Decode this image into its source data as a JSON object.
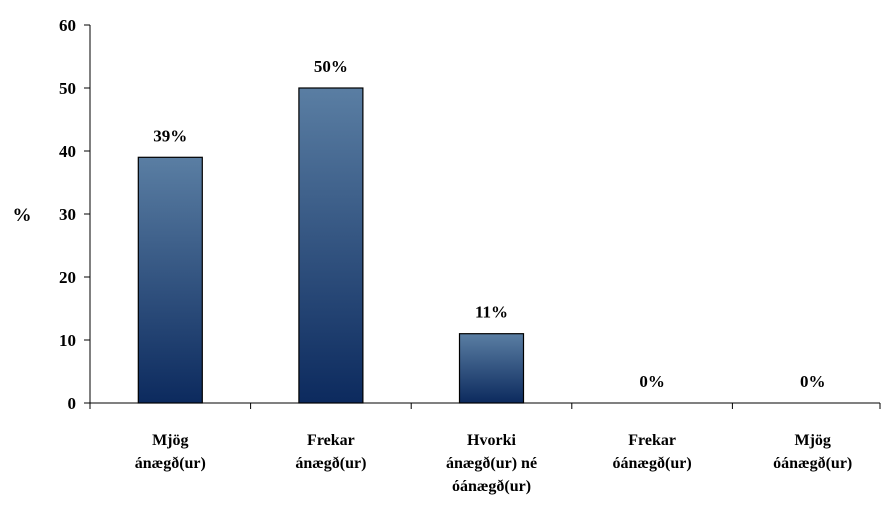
{
  "chart_data": {
    "type": "bar",
    "ylabel": "%",
    "ylim": [
      0,
      60
    ],
    "yticks": [
      0,
      10,
      20,
      30,
      40,
      50,
      60
    ],
    "categories": [
      [
        "Mjög",
        "ánægð(ur)"
      ],
      [
        "Frekar",
        "ánægð(ur)"
      ],
      [
        "Hvorki",
        "ánægð(ur) né",
        "óánægð(ur)"
      ],
      [
        "Frekar",
        "óánægð(ur)"
      ],
      [
        "Mjög",
        "óánægð(ur)"
      ]
    ],
    "values": [
      39,
      50,
      11,
      0,
      0
    ],
    "data_labels": [
      "39%",
      "50%",
      "11%",
      "0%",
      "0%"
    ],
    "grid": false,
    "colors": {
      "bar_top": "#5a7ea3",
      "bar_bottom": "#0c2a5e"
    }
  }
}
